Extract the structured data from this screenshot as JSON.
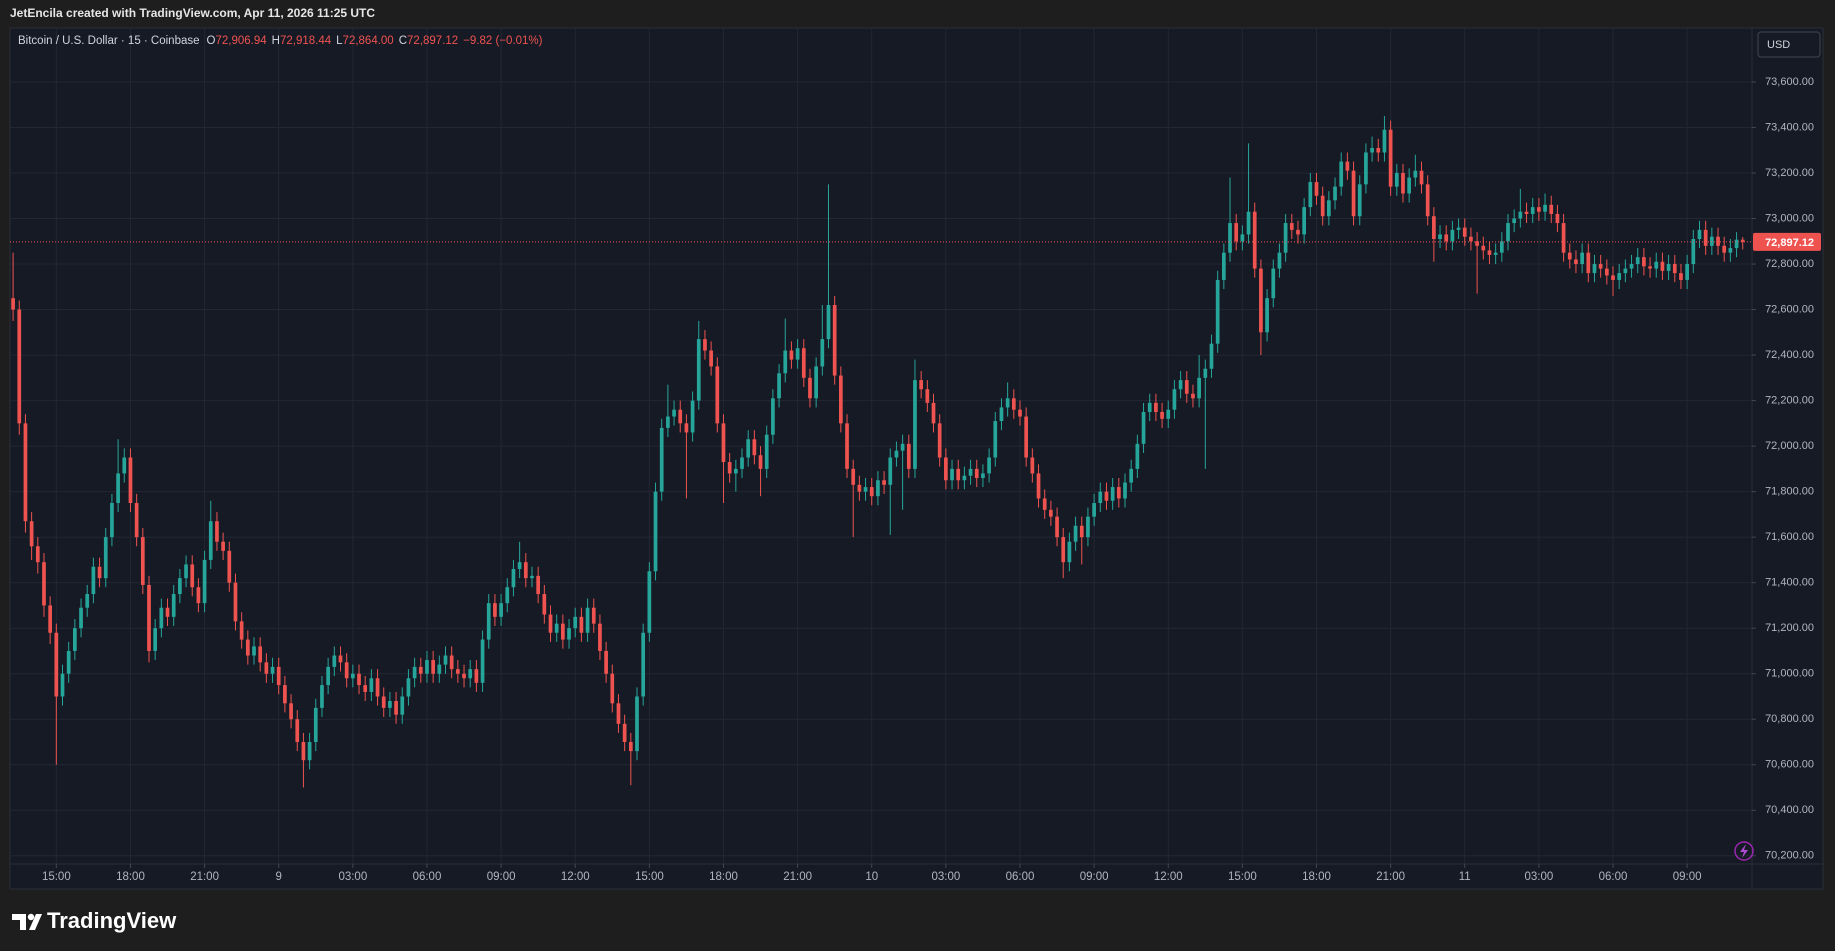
{
  "header": {
    "text": "JetEncila created with TradingView.com, Apr 11, 2026 11:25 UTC"
  },
  "footer": {
    "brand": "TradingView"
  },
  "chart_data": {
    "type": "candlestick",
    "legend": {
      "symbol": "Bitcoin / U.S. Dollar · 15 · Coinbase",
      "fields": [
        {
          "key": "O",
          "label": "72,906.94"
        },
        {
          "key": "H",
          "label": "72,918.44"
        },
        {
          "key": "L",
          "label": "72,864.00"
        },
        {
          "key": "C",
          "label": "72,897.12"
        }
      ],
      "change": "−9.82 (−0.01%)"
    },
    "currency": "USD",
    "up_color": "#26a69a",
    "down_color": "#ef5350",
    "open": [
      72650,
      72600,
      72100,
      71670,
      71560,
      71490,
      71300,
      71180,
      70900,
      71000,
      71100,
      71200,
      71290,
      71350,
      71470,
      71420,
      71600,
      71750,
      71880,
      71950,
      71750,
      71600,
      71390,
      71100,
      71200,
      71290,
      71250,
      71350,
      71420,
      71480,
      71380,
      71310,
      71500,
      71670,
      71580,
      71540,
      71400,
      71230,
      71150,
      71080,
      71120,
      71050,
      71000,
      71030,
      70950,
      70870,
      70800,
      70700,
      70620,
      70700,
      70850,
      70950,
      71030,
      71080,
      71050,
      70980,
      71000,
      70950,
      70920,
      70980,
      70900,
      70850,
      70880,
      70820,
      70900,
      70980,
      71030,
      71000,
      71060,
      71000,
      71040,
      71080,
      71020,
      71000,
      70980,
      71020,
      70960,
      71150,
      71310,
      71250,
      71310,
      71380,
      71460,
      71490,
      71420,
      71430,
      71350,
      71260,
      71180,
      71220,
      71150,
      71200,
      71250,
      71180,
      71290,
      71220,
      71100,
      71000,
      70870,
      70780,
      70700,
      70660,
      70900,
      71180,
      71450,
      71800,
      72080,
      72130,
      72160,
      72100,
      72060,
      72200,
      72470,
      72420,
      72350,
      72100,
      71930,
      71880,
      71900,
      71950,
      72030,
      71960,
      71900,
      72050,
      72210,
      72320,
      72420,
      72380,
      72430,
      72300,
      72210,
      72350,
      72470,
      72620,
      72310,
      72100,
      71900,
      71830,
      71800,
      71820,
      71780,
      71850,
      71830,
      71950,
      71980,
      72010,
      71900,
      72290,
      72250,
      72190,
      72100,
      71950,
      71850,
      71900,
      71850,
      71870,
      71900,
      71860,
      71880,
      71950,
      72110,
      72170,
      72210,
      72160,
      72130,
      71950,
      71880,
      71770,
      71720,
      71690,
      71600,
      71490,
      71580,
      71650,
      71600,
      71690,
      71750,
      71800,
      71760,
      71820,
      71770,
      71840,
      71900,
      72010,
      72150,
      72190,
      72150,
      72120,
      72160,
      72250,
      72290,
      72230,
      72210,
      72300,
      72340,
      72450,
      72730,
      72850,
      72980,
      72900,
      72930,
      73030,
      72780,
      72500,
      72650,
      72780,
      72850,
      72980,
      72950,
      72930,
      73050,
      73160,
      73100,
      73010,
      73080,
      73140,
      73250,
      73210,
      73010,
      73150,
      73290,
      73310,
      73290,
      73390,
      73140,
      73200,
      73110,
      73180,
      73210,
      73150,
      73010,
      72910,
      72930,
      72900,
      72950,
      72960,
      72920,
      72900,
      72880,
      72860,
      72840,
      72850,
      72900,
      72980,
      73000,
      73030,
      73020,
      73050,
      73030,
      73060,
      73020,
      72980,
      72850,
      72820,
      72800,
      72850,
      72760,
      72800,
      72780,
      72750,
      72730,
      72760,
      72780,
      72800,
      72830,
      72790,
      72780,
      72810,
      72770,
      72800,
      72760,
      72730,
      72800,
      72910,
      72950,
      72880,
      72920,
      72880,
      72850,
      72870,
      72906.94
    ],
    "high": [
      72850,
      72640,
      72140,
      71710,
      71600,
      71530,
      71340,
      71220,
      71040,
      71140,
      71240,
      71330,
      71390,
      71510,
      71510,
      71640,
      71790,
      72030,
      71990,
      71990,
      71790,
      71640,
      71430,
      71240,
      71330,
      71330,
      71390,
      71460,
      71520,
      71520,
      71420,
      71540,
      71760,
      71710,
      71620,
      71580,
      71440,
      71270,
      71190,
      71160,
      71160,
      71090,
      71070,
      71070,
      70990,
      70910,
      70840,
      70740,
      70740,
      70890,
      70990,
      71070,
      71120,
      71120,
      71090,
      71040,
      71040,
      70990,
      71020,
      71020,
      70940,
      70920,
      70920,
      70940,
      71020,
      71070,
      71070,
      71100,
      71100,
      71080,
      71120,
      71120,
      71060,
      71040,
      71060,
      71060,
      71190,
      71350,
      71350,
      71350,
      71420,
      71500,
      71580,
      71530,
      71470,
      71470,
      71390,
      71300,
      71260,
      71260,
      71240,
      71290,
      71290,
      71330,
      71330,
      71260,
      71140,
      71040,
      70910,
      70820,
      70740,
      70940,
      71220,
      71490,
      71840,
      72120,
      72270,
      72200,
      72200,
      72140,
      72240,
      72550,
      72510,
      72460,
      72390,
      72140,
      71970,
      71940,
      71990,
      72070,
      72070,
      72000,
      72090,
      72250,
      72360,
      72560,
      72460,
      72470,
      72470,
      72340,
      72390,
      72620,
      73150,
      72660,
      72350,
      72140,
      71940,
      71870,
      71860,
      71860,
      71890,
      71890,
      71990,
      72020,
      72050,
      72050,
      72380,
      72330,
      72290,
      72230,
      72140,
      71990,
      71940,
      71940,
      71910,
      71940,
      71940,
      71920,
      71990,
      72150,
      72210,
      72280,
      72250,
      72200,
      72170,
      71990,
      71920,
      71810,
      71760,
      71730,
      71640,
      71620,
      71690,
      71690,
      71730,
      71790,
      71840,
      71840,
      71860,
      71860,
      71880,
      71940,
      72050,
      72190,
      72230,
      72230,
      72190,
      72200,
      72290,
      72330,
      72330,
      72270,
      72400,
      72380,
      72490,
      72770,
      72890,
      73180,
      73020,
      72970,
      73330,
      73070,
      72820,
      72690,
      72820,
      72890,
      73020,
      73020,
      72990,
      73090,
      73200,
      73200,
      73140,
      73120,
      73180,
      73290,
      73290,
      73250,
      73190,
      73330,
      73360,
      73350,
      73450,
      73430,
      73240,
      73240,
      73220,
      73280,
      73250,
      73190,
      73050,
      72970,
      72970,
      72990,
      73000,
      73000,
      72960,
      72940,
      72920,
      72900,
      72890,
      72940,
      73020,
      73040,
      73130,
      73070,
      73090,
      73090,
      73110,
      73100,
      73060,
      73020,
      72890,
      72860,
      72890,
      72890,
      72840,
      72840,
      72820,
      72790,
      72800,
      72820,
      72840,
      72870,
      72870,
      72830,
      72850,
      72850,
      72840,
      72840,
      72800,
      72840,
      72950,
      72990,
      72990,
      72960,
      72960,
      72920,
      72910,
      72940,
      72918.44
    ],
    "low": [
      72550,
      72050,
      71620,
      71500,
      71440,
      71250,
      71130,
      70600,
      70860,
      70960,
      71060,
      71160,
      71250,
      71310,
      71380,
      71380,
      71560,
      71710,
      71840,
      71710,
      71560,
      71350,
      71050,
      71060,
      71160,
      71210,
      71210,
      71310,
      71380,
      71340,
      71270,
      71270,
      71460,
      71540,
      71500,
      71360,
      71190,
      71110,
      71040,
      71040,
      71010,
      70960,
      70960,
      70910,
      70830,
      70760,
      70660,
      70500,
      70580,
      70660,
      70810,
      70910,
      70990,
      71010,
      70940,
      70940,
      70910,
      70880,
      70880,
      70860,
      70810,
      70810,
      70780,
      70780,
      70860,
      70940,
      70960,
      70960,
      70960,
      70960,
      71000,
      70980,
      70960,
      70940,
      70940,
      70920,
      70920,
      71110,
      71210,
      71210,
      71270,
      71340,
      71420,
      71380,
      71380,
      71310,
      71220,
      71140,
      71140,
      71110,
      71110,
      71160,
      71140,
      71140,
      71180,
      71060,
      70960,
      70830,
      70740,
      70660,
      70510,
      70620,
      70860,
      71140,
      71410,
      71760,
      72040,
      72090,
      72060,
      71770,
      72020,
      72160,
      72380,
      72310,
      72060,
      71750,
      71840,
      71800,
      71860,
      71910,
      71920,
      71780,
      71860,
      72010,
      72170,
      72280,
      72340,
      72340,
      72260,
      72170,
      72170,
      72310,
      72430,
      72270,
      72060,
      71860,
      71600,
      71760,
      71760,
      71740,
      71740,
      71790,
      71610,
      71910,
      71720,
      71860,
      71860,
      72210,
      72150,
      72060,
      71910,
      71810,
      71810,
      71810,
      71810,
      71830,
      71820,
      71820,
      71840,
      71910,
      72070,
      72130,
      72120,
      72090,
      71910,
      71840,
      71730,
      71680,
      71650,
      71560,
      71420,
      71450,
      71540,
      71480,
      71560,
      71650,
      71710,
      71720,
      71720,
      71730,
      71730,
      71800,
      71860,
      71970,
      72110,
      72110,
      72080,
      72080,
      72120,
      72210,
      72190,
      72170,
      72170,
      71900,
      72300,
      72410,
      72690,
      72810,
      72860,
      72860,
      72890,
      72740,
      72400,
      72460,
      72610,
      72740,
      72810,
      72910,
      72890,
      72890,
      73010,
      73060,
      72970,
      72970,
      73040,
      73100,
      73170,
      72970,
      72970,
      73110,
      73250,
      73250,
      73250,
      73100,
      73100,
      73070,
      73070,
      73140,
      73110,
      72970,
      72810,
      72870,
      72860,
      72860,
      72910,
      72880,
      72860,
      72670,
      72820,
      72800,
      72800,
      72810,
      72860,
      72940,
      72960,
      72980,
      72980,
      72990,
      72990,
      72980,
      72940,
      72810,
      72780,
      72760,
      72760,
      72720,
      72720,
      72740,
      72710,
      72660,
      72690,
      72720,
      72740,
      72760,
      72750,
      72740,
      72740,
      72730,
      72730,
      72720,
      72690,
      72690,
      72760,
      72870,
      72840,
      72840,
      72840,
      72810,
      72810,
      72830,
      72864
    ],
    "close": [
      72600,
      72100,
      71670,
      71560,
      71490,
      71300,
      71180,
      70900,
      71000,
      71100,
      71200,
      71290,
      71350,
      71470,
      71420,
      71600,
      71750,
      71880,
      71950,
      71750,
      71600,
      71390,
      71100,
      71200,
      71290,
      71250,
      71350,
      71420,
      71480,
      71380,
      71310,
      71500,
      71670,
      71580,
      71540,
      71400,
      71230,
      71150,
      71080,
      71120,
      71050,
      71000,
      71030,
      70950,
      70870,
      70800,
      70700,
      70620,
      70700,
      70850,
      70950,
      71030,
      71080,
      71050,
      70980,
      71000,
      70950,
      70920,
      70980,
      70900,
      70850,
      70880,
      70820,
      70900,
      70980,
      71030,
      71000,
      71060,
      71000,
      71040,
      71080,
      71020,
      71000,
      70980,
      71020,
      70960,
      71150,
      71310,
      71250,
      71310,
      71380,
      71460,
      71490,
      71420,
      71430,
      71350,
      71260,
      71180,
      71220,
      71150,
      71200,
      71250,
      71180,
      71290,
      71220,
      71100,
      71000,
      70870,
      70780,
      70700,
      70660,
      70900,
      71180,
      71450,
      71800,
      72080,
      72130,
      72160,
      72100,
      72060,
      72200,
      72470,
      72420,
      72350,
      72100,
      71930,
      71880,
      71900,
      71950,
      72030,
      71960,
      71900,
      72050,
      72210,
      72320,
      72420,
      72380,
      72430,
      72300,
      72210,
      72350,
      72470,
      72620,
      72310,
      72100,
      71900,
      71830,
      71800,
      71820,
      71780,
      71850,
      71830,
      71950,
      71980,
      72010,
      71900,
      72290,
      72250,
      72190,
      72100,
      71950,
      71850,
      71900,
      71850,
      71870,
      71900,
      71860,
      71880,
      71950,
      72110,
      72170,
      72210,
      72160,
      72130,
      71950,
      71880,
      71770,
      71720,
      71690,
      71600,
      71490,
      71580,
      71650,
      71600,
      71690,
      71750,
      71800,
      71760,
      71820,
      71770,
      71840,
      71900,
      72010,
      72150,
      72190,
      72150,
      72120,
      72160,
      72250,
      72290,
      72230,
      72210,
      72300,
      72340,
      72450,
      72730,
      72850,
      72980,
      72900,
      72930,
      73030,
      72780,
      72500,
      72650,
      72780,
      72850,
      72980,
      72950,
      72930,
      73050,
      73160,
      73100,
      73010,
      73080,
      73140,
      73250,
      73210,
      73010,
      73150,
      73290,
      73310,
      73290,
      73390,
      73140,
      73200,
      73110,
      73180,
      73210,
      73150,
      73010,
      72910,
      72930,
      72900,
      72950,
      72960,
      72920,
      72900,
      72880,
      72860,
      72840,
      72850,
      72900,
      72980,
      73000,
      73030,
      73020,
      73050,
      73030,
      73060,
      73020,
      72980,
      72850,
      72820,
      72800,
      72850,
      72760,
      72800,
      72780,
      72750,
      72730,
      72760,
      72780,
      72800,
      72830,
      72790,
      72780,
      72810,
      72770,
      72800,
      72760,
      72730,
      72800,
      72910,
      72950,
      72880,
      72920,
      72880,
      72850,
      72870,
      72906.94,
      72897.12
    ],
    "last_price": {
      "value": 72897.12,
      "label": "72,897.12"
    },
    "xlim": [
      -0.5,
      281.5
    ],
    "xticks": [
      {
        "value": 7,
        "label": "15:00"
      },
      {
        "value": 19,
        "label": "18:00"
      },
      {
        "value": 31,
        "label": "21:00"
      },
      {
        "value": 43,
        "label": "9"
      },
      {
        "value": 55,
        "label": "03:00"
      },
      {
        "value": 67,
        "label": "06:00"
      },
      {
        "value": 79,
        "label": "09:00"
      },
      {
        "value": 91,
        "label": "12:00"
      },
      {
        "value": 103,
        "label": "15:00"
      },
      {
        "value": 115,
        "label": "18:00"
      },
      {
        "value": 127,
        "label": "21:00"
      },
      {
        "value": 139,
        "label": "10"
      },
      {
        "value": 151,
        "label": "03:00"
      },
      {
        "value": 163,
        "label": "06:00"
      },
      {
        "value": 175,
        "label": "09:00"
      },
      {
        "value": 187,
        "label": "12:00"
      },
      {
        "value": 199,
        "label": "15:00"
      },
      {
        "value": 211,
        "label": "18:00"
      },
      {
        "value": 223,
        "label": "21:00"
      },
      {
        "value": 235,
        "label": "11"
      },
      {
        "value": 247,
        "label": "03:00"
      },
      {
        "value": 259,
        "label": "06:00"
      },
      {
        "value": 271,
        "label": "09:00"
      }
    ],
    "ylim": [
      70164,
      73837
    ],
    "yticks": [
      {
        "value": 70200,
        "label": "70,200.00"
      },
      {
        "value": 70400,
        "label": "70,400.00"
      },
      {
        "value": 70600,
        "label": "70,600.00"
      },
      {
        "value": 70800,
        "label": "70,800.00"
      },
      {
        "value": 71000,
        "label": "71,000.00"
      },
      {
        "value": 71200,
        "label": "71,200.00"
      },
      {
        "value": 71400,
        "label": "71,400.00"
      },
      {
        "value": 71600,
        "label": "71,600.00"
      },
      {
        "value": 71800,
        "label": "71,800.00"
      },
      {
        "value": 72000,
        "label": "72,000.00"
      },
      {
        "value": 72200,
        "label": "72,200.00"
      },
      {
        "value": 72400,
        "label": "72,400.00"
      },
      {
        "value": 72600,
        "label": "72,600.00"
      },
      {
        "value": 72800,
        "label": "72,800.00"
      },
      {
        "value": 73000,
        "label": "73,000.00"
      },
      {
        "value": 73200,
        "label": "73,200.00"
      },
      {
        "value": 73400,
        "label": "73,400.00"
      },
      {
        "value": 73600,
        "label": "73,600.00"
      }
    ],
    "grid": true
  }
}
